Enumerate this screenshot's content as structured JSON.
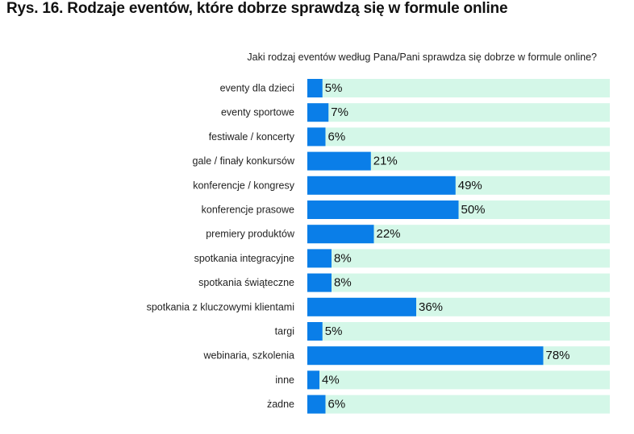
{
  "figure": {
    "title": "Rys. 16. Rodzaje eventów, które dobrze sprawdzą się w formule online"
  },
  "chart_data": {
    "type": "bar",
    "orientation": "horizontal",
    "title": "Jaki rodzaj eventów według Pana/Pani sprawdza się dobrze w formule online?",
    "categories": [
      "eventy dla dzieci",
      "eventy sportowe",
      "festiwale / koncerty",
      "gale / finały konkursów",
      "konferencje / kongresy",
      "konferencje prasowe",
      "premiery produktów",
      "spotkania integracyjne",
      "spotkania świąteczne",
      "spotkania z kluczowymi klientami",
      "targi",
      "webinaria, szkolenia",
      "inne",
      "żadne"
    ],
    "values": [
      5,
      7,
      6,
      21,
      49,
      50,
      22,
      8,
      8,
      36,
      5,
      78,
      4,
      6
    ],
    "value_labels": [
      "5%",
      "7%",
      "6%",
      "21%",
      "49%",
      "50%",
      "22%",
      "8%",
      "8%",
      "36%",
      "5%",
      "78%",
      "4%",
      "6%"
    ],
    "xlim": [
      0,
      100
    ],
    "unit": "%",
    "colors": {
      "bar": "#0a7ee8",
      "track": "#d4f7e8"
    }
  }
}
